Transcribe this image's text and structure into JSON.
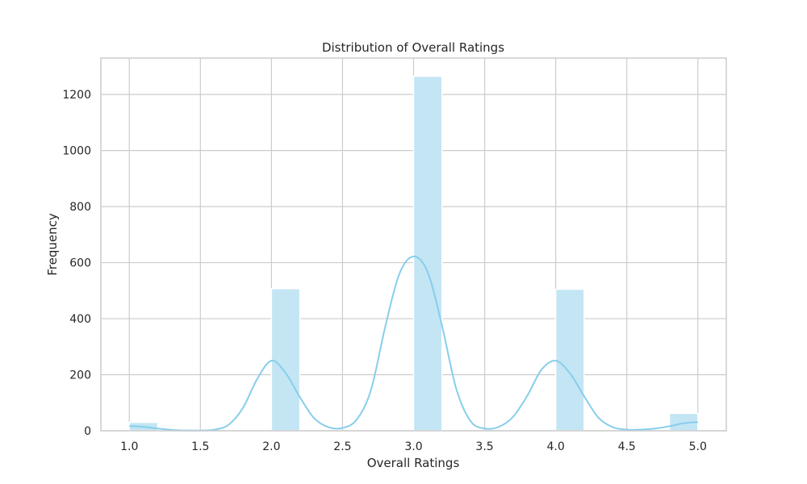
{
  "chart_data": {
    "type": "bar",
    "title": "Distribution of Overall Ratings",
    "xlabel": "Overall Ratings",
    "ylabel": "Frequency",
    "xlim": [
      0.8,
      5.2
    ],
    "ylim": [
      0,
      1330
    ],
    "xticks": [
      1.0,
      1.5,
      2.0,
      2.5,
      3.0,
      3.5,
      4.0,
      4.5,
      5.0
    ],
    "xtick_labels": [
      "1.0",
      "1.5",
      "2.0",
      "2.5",
      "3.0",
      "3.5",
      "4.0",
      "4.5",
      "5.0"
    ],
    "yticks": [
      0,
      200,
      400,
      600,
      800,
      1000,
      1200
    ],
    "ytick_labels": [
      "0",
      "200",
      "400",
      "600",
      "800",
      "1000",
      "1200"
    ],
    "grid": true,
    "bins": [
      {
        "start": 1.0,
        "end": 1.2,
        "count": 30
      },
      {
        "start": 1.2,
        "end": 1.4,
        "count": 0
      },
      {
        "start": 1.4,
        "end": 1.6,
        "count": 0
      },
      {
        "start": 1.6,
        "end": 1.8,
        "count": 0
      },
      {
        "start": 1.8,
        "end": 2.0,
        "count": 0
      },
      {
        "start": 2.0,
        "end": 2.2,
        "count": 507
      },
      {
        "start": 2.2,
        "end": 2.4,
        "count": 0
      },
      {
        "start": 2.4,
        "end": 2.6,
        "count": 0
      },
      {
        "start": 2.6,
        "end": 2.8,
        "count": 0
      },
      {
        "start": 2.8,
        "end": 3.0,
        "count": 0
      },
      {
        "start": 3.0,
        "end": 3.2,
        "count": 1265
      },
      {
        "start": 3.2,
        "end": 3.4,
        "count": 0
      },
      {
        "start": 3.4,
        "end": 3.6,
        "count": 0
      },
      {
        "start": 3.6,
        "end": 3.8,
        "count": 0
      },
      {
        "start": 3.8,
        "end": 4.0,
        "count": 0
      },
      {
        "start": 4.0,
        "end": 4.2,
        "count": 505
      },
      {
        "start": 4.2,
        "end": 4.4,
        "count": 0
      },
      {
        "start": 4.4,
        "end": 4.6,
        "count": 0
      },
      {
        "start": 4.6,
        "end": 4.8,
        "count": 0
      },
      {
        "start": 4.8,
        "end": 5.0,
        "count": 62
      }
    ],
    "kde": {
      "x": [
        1.0,
        1.1,
        1.2,
        1.3,
        1.4,
        1.5,
        1.6,
        1.7,
        1.8,
        1.9,
        2.0,
        2.1,
        2.2,
        2.3,
        2.4,
        2.5,
        2.6,
        2.7,
        2.8,
        2.9,
        3.0,
        3.1,
        3.2,
        3.3,
        3.4,
        3.5,
        3.6,
        3.7,
        3.8,
        3.9,
        4.0,
        4.1,
        4.2,
        4.3,
        4.4,
        4.5,
        4.6,
        4.7,
        4.8,
        4.9,
        5.0
      ],
      "y": [
        17,
        14,
        8,
        3,
        1,
        1,
        4,
        22,
        82,
        185,
        250,
        206,
        120,
        45,
        13,
        10,
        40,
        145,
        370,
        560,
        622,
        565,
        375,
        150,
        35,
        8,
        14,
        50,
        125,
        218,
        250,
        205,
        123,
        47,
        13,
        4,
        4,
        8,
        16,
        27,
        31
      ]
    },
    "bar_color": "#c3e5f4",
    "line_color": "#87ceeb",
    "grid_color": "#cccccc",
    "frame_color": "#cccccc"
  }
}
